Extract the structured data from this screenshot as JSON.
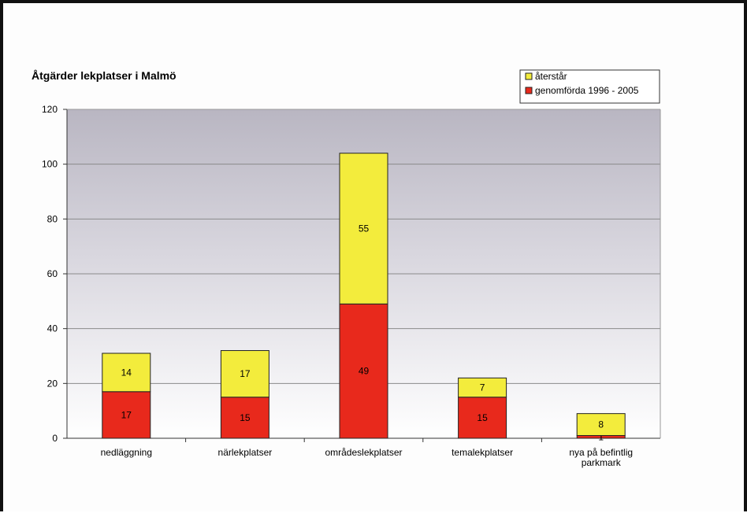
{
  "chart_data": {
    "type": "bar",
    "stacked": true,
    "title": "Åtgärder lekplatser i Malmö",
    "xlabel": "",
    "ylabel": "",
    "ylim": [
      0,
      120
    ],
    "yticks": [
      0,
      20,
      40,
      60,
      80,
      100,
      120
    ],
    "grid": true,
    "legend_position": "top-right",
    "categories": [
      [
        "nedläggning"
      ],
      [
        "närlekplatser"
      ],
      [
        "områdeslekplatser"
      ],
      [
        "temalekplatser"
      ],
      [
        "nya på befintlig",
        "parkmark"
      ]
    ],
    "series": [
      {
        "name": "genomförda 1996 - 2005",
        "color": "#e8291c",
        "values": [
          17,
          15,
          49,
          15,
          1
        ]
      },
      {
        "name": "återstår",
        "color": "#f3ec3c",
        "values": [
          14,
          17,
          55,
          7,
          8
        ]
      }
    ]
  }
}
